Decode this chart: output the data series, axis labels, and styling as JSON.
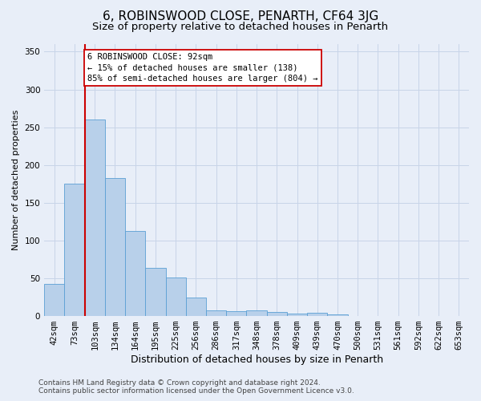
{
  "title": "6, ROBINSWOOD CLOSE, PENARTH, CF64 3JG",
  "subtitle": "Size of property relative to detached houses in Penarth",
  "xlabel": "Distribution of detached houses by size in Penarth",
  "ylabel": "Number of detached properties",
  "categories": [
    "42sqm",
    "73sqm",
    "103sqm",
    "134sqm",
    "164sqm",
    "195sqm",
    "225sqm",
    "256sqm",
    "286sqm",
    "317sqm",
    "348sqm",
    "378sqm",
    "409sqm",
    "439sqm",
    "470sqm",
    "500sqm",
    "531sqm",
    "561sqm",
    "592sqm",
    "622sqm",
    "653sqm"
  ],
  "bar_heights": [
    43,
    175,
    260,
    183,
    113,
    64,
    51,
    25,
    8,
    6,
    8,
    5,
    3,
    4,
    2,
    0,
    0,
    0,
    0,
    0,
    0
  ],
  "bar_color": "#b8d0ea",
  "bar_edge_color": "#5a9fd4",
  "grid_color": "#c8d4e8",
  "background_color": "#e8eef8",
  "red_line_x": 2.0,
  "red_line_color": "#cc0000",
  "annotation_line1": "6 ROBINSWOOD CLOSE: 92sqm",
  "annotation_line2": "← 15% of detached houses are smaller (138)",
  "annotation_line3": "85% of semi-detached houses are larger (804) →",
  "annotation_box_color": "#ffffff",
  "annotation_box_edge": "#cc0000",
  "ylim": [
    0,
    360
  ],
  "yticks": [
    0,
    50,
    100,
    150,
    200,
    250,
    300,
    350
  ],
  "footer_text": "Contains HM Land Registry data © Crown copyright and database right 2024.\nContains public sector information licensed under the Open Government Licence v3.0.",
  "title_fontsize": 11,
  "subtitle_fontsize": 9.5,
  "xlabel_fontsize": 9,
  "ylabel_fontsize": 8,
  "tick_fontsize": 7.5,
  "footer_fontsize": 6.5
}
